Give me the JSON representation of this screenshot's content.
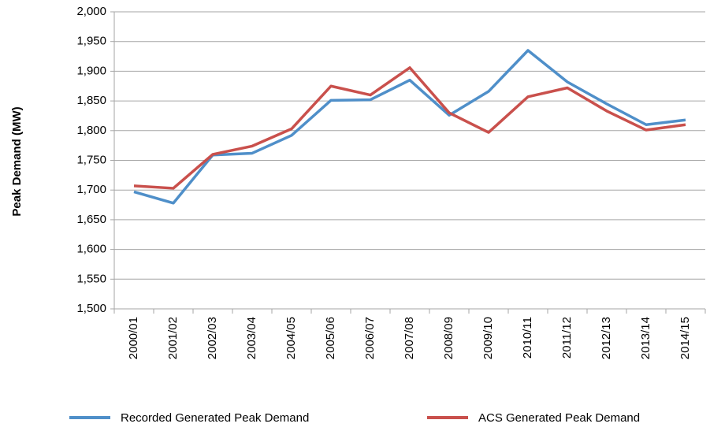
{
  "chart_data": {
    "type": "line",
    "y_label": "Peak Demand (MW)",
    "categories": [
      "2000/01",
      "2001/02",
      "2002/03",
      "2003/04",
      "2004/05",
      "2005/06",
      "2006/07",
      "2007/08",
      "2008/09",
      "2009/10",
      "2010/11",
      "2011/12",
      "2012/13",
      "2013/14",
      "2014/15"
    ],
    "series": [
      {
        "name": "Recorded Generated Peak Demand",
        "color": "#4f8fc9",
        "values": [
          1697,
          1678,
          1759,
          1762,
          1792,
          1851,
          1852,
          1885,
          1826,
          1866,
          1935,
          1882,
          1845,
          1810,
          1818
        ]
      },
      {
        "name": "ACS Generated Peak Demand",
        "color": "#c9504c",
        "values": [
          1707,
          1703,
          1760,
          1774,
          1803,
          1875,
          1860,
          1906,
          1830,
          1797,
          1857,
          1872,
          1833,
          1801,
          1810
        ]
      }
    ],
    "ylim": [
      1500,
      2000
    ],
    "yticks": [
      {
        "value": 1500,
        "label": "1,500"
      },
      {
        "value": 1550,
        "label": "1,550"
      },
      {
        "value": 1600,
        "label": "1,600"
      },
      {
        "value": 1650,
        "label": "1,650"
      },
      {
        "value": 1700,
        "label": "1,700"
      },
      {
        "value": 1750,
        "label": "1,750"
      },
      {
        "value": 1800,
        "label": "1,800"
      },
      {
        "value": 1850,
        "label": "1,850"
      },
      {
        "value": 1900,
        "label": "1,900"
      },
      {
        "value": 1950,
        "label": "1,950"
      },
      {
        "value": 2000,
        "label": "2,000"
      }
    ],
    "grid": true,
    "legend": "bottom"
  }
}
